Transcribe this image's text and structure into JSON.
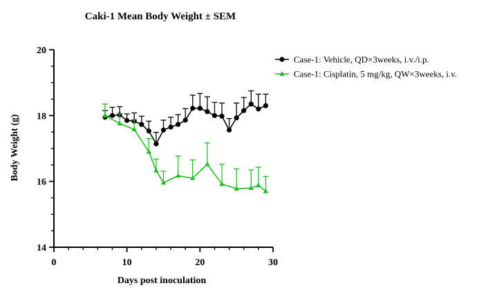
{
  "chart_data": {
    "type": "line",
    "title": "Caki-1 Mean Body Weight ± SEM",
    "xlabel": "Days post inoculation",
    "ylabel": "Body Weight (g)",
    "xlim": [
      0,
      30
    ],
    "ylim": [
      14,
      20
    ],
    "x_ticks": [
      0,
      10,
      20,
      30
    ],
    "y_ticks": [
      14,
      16,
      18,
      20
    ],
    "grid": false,
    "legend_position": "top-right",
    "series": [
      {
        "name": "Case-1: Vehicle, QD×3weeks, i.v./i.p.",
        "color": "#000000",
        "marker": "circle",
        "error_direction": "up",
        "x": [
          7,
          8,
          9,
          10,
          11,
          12,
          13,
          14,
          15,
          16,
          17,
          18,
          19,
          20,
          21,
          22,
          23,
          24,
          25,
          26,
          27,
          28,
          29
        ],
        "y": [
          17.95,
          18.0,
          18.02,
          17.85,
          17.83,
          17.73,
          17.53,
          17.14,
          17.56,
          17.65,
          17.73,
          17.86,
          18.22,
          18.22,
          18.12,
          18.0,
          17.98,
          17.56,
          17.93,
          18.15,
          18.35,
          18.2,
          18.3
        ],
        "sem": [
          0.2,
          0.25,
          0.25,
          0.2,
          0.25,
          0.25,
          0.3,
          0.35,
          0.3,
          0.3,
          0.3,
          0.35,
          0.4,
          0.45,
          0.45,
          0.4,
          0.4,
          0.35,
          0.45,
          0.4,
          0.4,
          0.45,
          0.35
        ]
      },
      {
        "name": "Case-1: Cisplatin, 5 mg/kg, QW×3weeks, i.v.",
        "color": "#22bb22",
        "marker": "triangle",
        "error_direction": "up",
        "x": [
          7,
          9,
          11,
          13,
          14,
          15,
          17,
          19,
          21,
          23,
          25,
          27,
          28,
          29
        ],
        "y": [
          18.0,
          17.76,
          17.58,
          16.9,
          16.33,
          15.96,
          16.17,
          16.1,
          16.52,
          15.92,
          15.78,
          15.8,
          15.88,
          15.7
        ],
        "sem": [
          0.35,
          0.3,
          0.3,
          0.4,
          0.35,
          0.35,
          0.6,
          0.55,
          0.65,
          0.6,
          0.6,
          0.55,
          0.55,
          0.45
        ]
      }
    ]
  }
}
